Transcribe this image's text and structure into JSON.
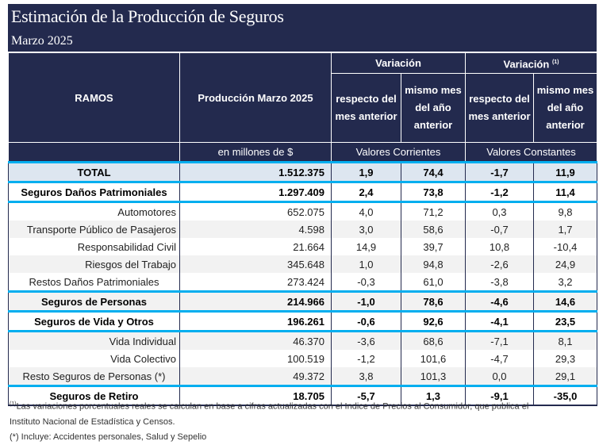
{
  "title": "Estimación de la Producción de Seguros",
  "subtitle": "Marzo 2025",
  "header": {
    "ramos": "RAMOS",
    "produccion": "Producción Marzo 2025",
    "variacion": "Variación",
    "variacion_real": "Variación",
    "variacion_real_note": "(1)",
    "respecto": "respecto del mes anterior",
    "mismo": "mismo mes del año anterior",
    "units": "en millones de $",
    "corrientes": "Valores Corrientes",
    "constantes": "Valores Constantes"
  },
  "colors": {
    "header_bg": "#232a4e",
    "accent_line": "#00aeef",
    "total_bg": "#dde6f0"
  },
  "rows": [
    {
      "ramo": "TOTAL",
      "prod": "1.512.375",
      "c1": "1,9",
      "c2": "74,4",
      "k1": "-1,7",
      "k2": "11,9"
    },
    {
      "ramo": "Seguros Daños Patrimoniales",
      "prod": "1.297.409",
      "c1": "2,4",
      "c2": "73,8",
      "k1": "-1,2",
      "k2": "11,4"
    },
    {
      "ramo": "Automotores",
      "prod": "652.075",
      "c1": "4,0",
      "c2": "71,2",
      "k1": "0,3",
      "k2": "9,8"
    },
    {
      "ramo": "Transporte Público de Pasajeros",
      "prod": "4.598",
      "c1": "3,0",
      "c2": "58,6",
      "k1": "-0,7",
      "k2": "1,7"
    },
    {
      "ramo": "Responsabilidad Civil",
      "prod": "21.664",
      "c1": "14,9",
      "c2": "39,7",
      "k1": "10,8",
      "k2": "-10,4"
    },
    {
      "ramo": "Riesgos del Trabajo",
      "prod": "345.648",
      "c1": "1,0",
      "c2": "94,8",
      "k1": "-2,6",
      "k2": "24,9"
    },
    {
      "ramo": "Restos Daños Patrimoniales",
      "prod": "273.424",
      "c1": "-0,3",
      "c2": "61,0",
      "k1": "-3,8",
      "k2": "3,2"
    },
    {
      "ramo": "Seguros de Personas",
      "prod": "214.966",
      "c1": "-1,0",
      "c2": "78,6",
      "k1": "-4,6",
      "k2": "14,6"
    },
    {
      "ramo": "Seguros de Vida y Otros",
      "prod": "196.261",
      "c1": "-0,6",
      "c2": "92,6",
      "k1": "-4,1",
      "k2": "23,5"
    },
    {
      "ramo": "Vida Individual",
      "prod": "46.370",
      "c1": "-3,6",
      "c2": "68,6",
      "k1": "-7,1",
      "k2": "8,1"
    },
    {
      "ramo": "Vida Colectivo",
      "prod": "100.519",
      "c1": "-1,2",
      "c2": "101,6",
      "k1": "-4,7",
      "k2": "29,3"
    },
    {
      "ramo": "Resto Seguros de Personas (*)",
      "prod": "49.372",
      "c1": "3,8",
      "c2": "101,3",
      "k1": "0,0",
      "k2": "29,1"
    },
    {
      "ramo": "Seguros de Retiro",
      "prod": "18.705",
      "c1": "-5,7",
      "c2": "1,3",
      "k1": "-9,1",
      "k2": "-35,0"
    }
  ],
  "footnotes": {
    "note1_mark": "(1)",
    "note1": "Las variaciones porcentuales reales se calculan en base a cifras actualizadas con  el Indice de Precios al Consumidor, que publica el",
    "note1b": "Instituto Nacional de Estadística y  Censos.",
    "note2": "(*) Incluye: Accidentes personales, Salud y Sepelio"
  }
}
